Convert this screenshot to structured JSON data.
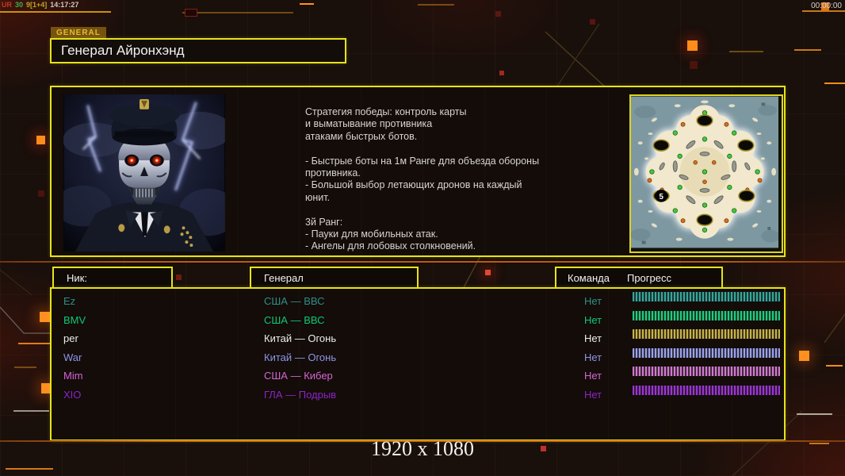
{
  "statusbar": {
    "tag": "UR",
    "fps": "30",
    "counters": "9[1+4]",
    "time": "14:17:27",
    "clock": "00:00:00"
  },
  "header": {
    "tab_label": "GENERAL",
    "title": "Генерал Айронхэнд"
  },
  "info": {
    "strategy_lines": [
      "Стратегия победы: контроль карты",
      "и выматывание противника",
      "атаками быстрых ботов.",
      "",
      "- Быстрые боты на 1м Ранге для объезда обороны",
      " противника.",
      "- Большой выбор летающих дронов на каждый",
      " юнит.",
      "",
      "3й Ранг:",
      "- Пауки для мобильных атак.",
      "- Ангелы для лобовых столкновений."
    ],
    "map": {
      "position_label": "5"
    }
  },
  "roster": {
    "headers": {
      "nick": "Ник:",
      "general": "Генерал",
      "team": "Команда",
      "progress": "Прогресс"
    },
    "players": [
      {
        "nick": "Ez",
        "general": "США — ВВС",
        "team": "Нет",
        "color": "#2f8f88",
        "bar_color": "#33a89e"
      },
      {
        "nick": "BMV",
        "general": "США — ВВС",
        "team": "Нет",
        "color": "#0cc878",
        "bar_color": "#20cc80"
      },
      {
        "nick": "per",
        "general": "Китай — Огонь",
        "team": "Нет",
        "color": "#eeeeee",
        "bar_color": "#c6b24a"
      },
      {
        "nick": "War",
        "general": "Китай — Огонь",
        "team": "Нет",
        "color": "#8f93ea",
        "bar_color": "#9aa2ee"
      },
      {
        "nick": "Mim",
        "general": "США — Кибер",
        "team": "Нет",
        "color": "#d564d5",
        "bar_color": "#d07ad0"
      },
      {
        "nick": "XIO",
        "general": "ГЛА — Подрыв",
        "team": "Нет",
        "color": "#8c24c8",
        "bar_color": "#9a36d4"
      }
    ]
  },
  "footer": {
    "resolution": "1920 x 1080"
  }
}
